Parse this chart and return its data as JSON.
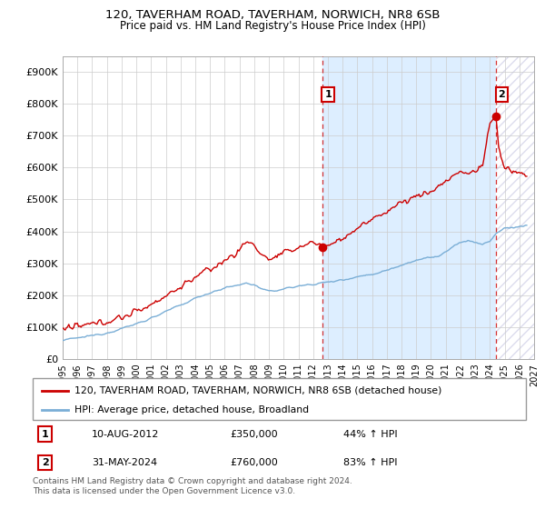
{
  "title": "120, TAVERHAM ROAD, TAVERHAM, NORWICH, NR8 6SB",
  "subtitle": "Price paid vs. HM Land Registry's House Price Index (HPI)",
  "red_label": "120, TAVERHAM ROAD, TAVERHAM, NORWICH, NR8 6SB (detached house)",
  "blue_label": "HPI: Average price, detached house, Broadland",
  "annotation1_num": "1",
  "annotation1_date": "10-AUG-2012",
  "annotation1_price": "£350,000",
  "annotation1_hpi": "44% ↑ HPI",
  "annotation2_num": "2",
  "annotation2_date": "31-MAY-2024",
  "annotation2_price": "£760,000",
  "annotation2_hpi": "83% ↑ HPI",
  "footer": "Contains HM Land Registry data © Crown copyright and database right 2024.\nThis data is licensed under the Open Government Licence v3.0.",
  "ylim": [
    0,
    950000
  ],
  "yticks": [
    0,
    100000,
    200000,
    300000,
    400000,
    500000,
    600000,
    700000,
    800000,
    900000
  ],
  "ytick_labels": [
    "£0",
    "£100K",
    "£200K",
    "£300K",
    "£400K",
    "£500K",
    "£600K",
    "£700K",
    "£800K",
    "£900K"
  ],
  "red_color": "#cc0000",
  "blue_color": "#7aaed6",
  "shade_color": "#ddeeff",
  "marker1_x": 2012.62,
  "marker1_y": 350000,
  "marker2_x": 2024.42,
  "marker2_y": 760000,
  "vline1_x": 2012.62,
  "vline2_x": 2024.42,
  "xmin": 1995,
  "xmax": 2027,
  "xtick_years": [
    1995,
    1996,
    1997,
    1998,
    1999,
    2000,
    2001,
    2002,
    2003,
    2004,
    2005,
    2006,
    2007,
    2008,
    2009,
    2010,
    2011,
    2012,
    2013,
    2014,
    2015,
    2016,
    2017,
    2018,
    2019,
    2020,
    2021,
    2022,
    2023,
    2024,
    2025,
    2026,
    2027
  ]
}
